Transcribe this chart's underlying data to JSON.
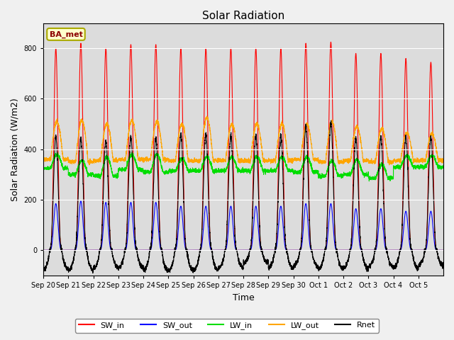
{
  "title": "Solar Radiation",
  "xlabel": "Time",
  "ylabel": "Solar Radiation (W/m2)",
  "ylim": [
    -100,
    900
  ],
  "bg_color": "#dcdcdc",
  "fig_bg_color": "#f0f0f0",
  "label_box": "BA_met",
  "series_colors": {
    "SW_in": "#ff0000",
    "SW_out": "#0000ff",
    "LW_in": "#00dd00",
    "LW_out": "#ffa500",
    "Rnet": "#000000"
  },
  "n_days": 16,
  "xtick_labels": [
    "Sep 20",
    "Sep 21",
    "Sep 22",
    "Sep 23",
    "Sep 24",
    "Sep 25",
    "Sep 26",
    "Sep 27",
    "Sep 28",
    "Sep 29",
    "Sep 30",
    "Oct 1",
    "Oct 2",
    "Oct 3",
    "Oct 4",
    "Oct 5"
  ],
  "SW_in_peaks": [
    800,
    820,
    800,
    815,
    815,
    800,
    800,
    800,
    800,
    800,
    820,
    825,
    780,
    780,
    760,
    745
  ],
  "SW_out_peaks": [
    185,
    195,
    190,
    190,
    190,
    175,
    175,
    175,
    175,
    175,
    185,
    185,
    165,
    165,
    155,
    155
  ],
  "LW_in_base": [
    325,
    300,
    295,
    320,
    310,
    315,
    315,
    315,
    315,
    315,
    310,
    295,
    300,
    285,
    330,
    330
  ],
  "LW_out_base": [
    360,
    350,
    355,
    360,
    360,
    355,
    355,
    355,
    355,
    355,
    360,
    350,
    355,
    350,
    355,
    355
  ],
  "LW_in_day_peak": [
    380,
    355,
    370,
    380,
    380,
    365,
    370,
    370,
    370,
    370,
    370,
    355,
    360,
    340,
    375,
    375
  ],
  "LW_out_day_peak": [
    510,
    515,
    500,
    515,
    510,
    500,
    525,
    500,
    500,
    500,
    500,
    510,
    490,
    480,
    465,
    460
  ],
  "Rnet_day_peak": [
    450,
    445,
    435,
    450,
    445,
    460,
    460,
    455,
    455,
    455,
    490,
    505,
    445,
    450,
    450,
    450
  ],
  "Rnet_night_min": [
    -75,
    -80,
    -70,
    -70,
    -80,
    -80,
    -80,
    -70,
    -50,
    -70,
    -65,
    -75,
    -70,
    -65,
    -70,
    -60
  ]
}
